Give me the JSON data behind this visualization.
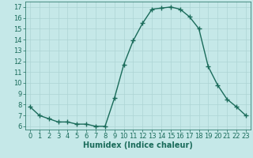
{
  "x": [
    0,
    1,
    2,
    3,
    4,
    5,
    6,
    7,
    8,
    9,
    10,
    11,
    12,
    13,
    14,
    15,
    16,
    17,
    18,
    19,
    20,
    21,
    22,
    23
  ],
  "y": [
    7.8,
    7.0,
    6.7,
    6.4,
    6.4,
    6.2,
    6.2,
    6.0,
    6.0,
    8.6,
    11.7,
    13.9,
    15.5,
    16.8,
    16.9,
    17.0,
    16.8,
    16.1,
    15.0,
    11.5,
    9.8,
    8.5,
    7.8,
    7.0
  ],
  "line_color": "#1a6b5a",
  "marker": "+",
  "marker_size": 4,
  "bg_color": "#c5e8e8",
  "grid_color": "#add4d4",
  "xlabel": "Humidex (Indice chaleur)",
  "ylim": [
    5.7,
    17.5
  ],
  "xlim": [
    -0.5,
    23.5
  ],
  "yticks": [
    6,
    7,
    8,
    9,
    10,
    11,
    12,
    13,
    14,
    15,
    16,
    17
  ],
  "xticks": [
    0,
    1,
    2,
    3,
    4,
    5,
    6,
    7,
    8,
    9,
    10,
    11,
    12,
    13,
    14,
    15,
    16,
    17,
    18,
    19,
    20,
    21,
    22,
    23
  ],
  "tick_fontsize": 6,
  "xlabel_fontsize": 7,
  "line_width": 1.0,
  "marker_linewidth": 1.0
}
